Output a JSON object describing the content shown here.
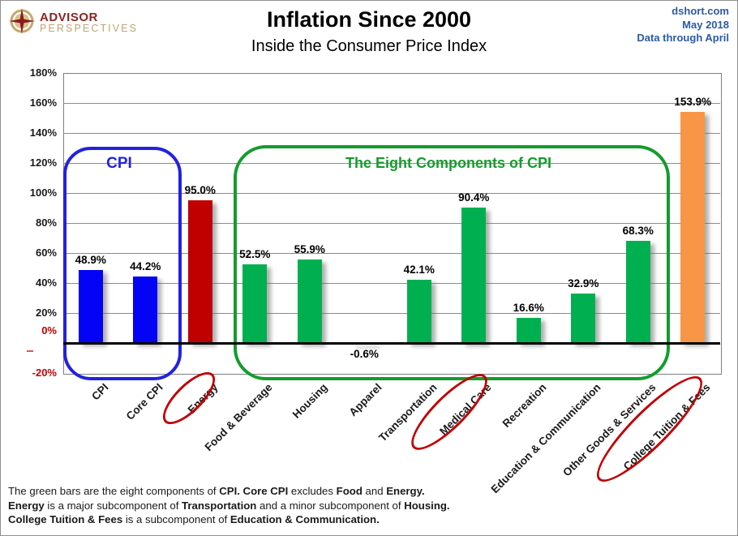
{
  "logo": {
    "brand_top": "ADVISOR",
    "brand_bottom": "PERSPECTIVES"
  },
  "header": {
    "title": "Inflation Since 2000",
    "subtitle": "Inside the Consumer Price Index"
  },
  "source": {
    "site": "dshort.com",
    "date": "May 2018",
    "note": "Data through April"
  },
  "chart_data": {
    "type": "bar",
    "title": "Inflation Since 2000",
    "subtitle": "Inside the Consumer Price Index",
    "categories": [
      "CPI",
      "Core CPI",
      "Energy",
      "Food & Beverage",
      "Housing",
      "Apparel",
      "Transportation",
      "Medical Care",
      "Recreation",
      "Education & Communication",
      "Other Goods & Services",
      "College Tuition & Fees"
    ],
    "values": [
      48.9,
      44.2,
      95.0,
      52.5,
      55.9,
      -0.6,
      42.1,
      90.4,
      16.6,
      32.9,
      68.3,
      153.9
    ],
    "bar_colors": [
      "#0303f5",
      "#0303f5",
      "#c00000",
      "#00b050",
      "#00b050",
      "#00b050",
      "#00b050",
      "#00b050",
      "#00b050",
      "#00b050",
      "#00b050",
      "#f79646"
    ],
    "value_label_format": "one_decimal_percent",
    "ylim": [
      -20,
      180
    ],
    "ytick_step": 20,
    "ytick_suffix": "%",
    "grid": true,
    "legend": false,
    "red_circled_categories": [
      "Energy",
      "Medical Care",
      "College Tuition & Fees"
    ],
    "annotations": {
      "cpi_group_label": "CPI",
      "components_group_label": "The Eight Components of CPI"
    }
  },
  "colors": {
    "bar_blue": "#0303f5",
    "bar_red": "#c00000",
    "bar_green": "#00b050",
    "bar_orange": "#f79646",
    "cpi_box": "#2222de",
    "components_box": "#149c2c",
    "circle_annotation": "#c00000",
    "negative_axis_label": "#c00000",
    "source_text": "#2b5aa6",
    "logo_red": "#8c2323",
    "logo_tan": "#bda472"
  },
  "footer": {
    "lines": [
      [
        {
          "text": "The green bars are the eight components of ",
          "bold": false
        },
        {
          "text": "CPI. Core CPI",
          "bold": true
        },
        {
          "text": " excludes ",
          "bold": false
        },
        {
          "text": "Food",
          "bold": true
        },
        {
          "text": " and ",
          "bold": false
        },
        {
          "text": "Energy.",
          "bold": true
        }
      ],
      [
        {
          "text": "Energy",
          "bold": true
        },
        {
          "text": " is a major subcomponent of ",
          "bold": false
        },
        {
          "text": "Transportation",
          "bold": true
        },
        {
          "text": " and a minor subcomponent of ",
          "bold": false
        },
        {
          "text": "Housing.",
          "bold": true
        }
      ],
      [
        {
          "text": "College Tuition & Fees",
          "bold": true
        },
        {
          "text": " is a subcomponent of ",
          "bold": false
        },
        {
          "text": "Education & Communication.",
          "bold": true
        }
      ]
    ]
  }
}
